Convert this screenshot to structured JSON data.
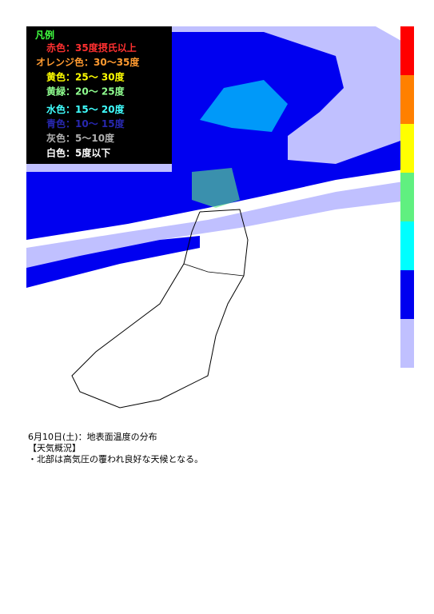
{
  "legend": {
    "title": "凡例",
    "items": [
      {
        "label": "赤色：35度摂氏以上",
        "color": "#ff3030"
      },
      {
        "label": "オレンジ色：30～35度",
        "color": "#ff9a30"
      },
      {
        "label": "黄色：25～ 30度",
        "color": "#ffff00"
      },
      {
        "label": "黄緑：20～ 25度",
        "color": "#90ff90"
      },
      {
        "label": "水色：15～ 20度",
        "color": "#40ffff"
      },
      {
        "label": "青色：10～ 15度",
        "color": "#2828b0"
      },
      {
        "label": "灰色：5～10度",
        "color": "#b0b0b0"
      },
      {
        "label": "白色：5度以下",
        "color": "#ffffff"
      }
    ]
  },
  "color_bar": [
    "#ff0000",
    "#ff8000",
    "#ffff00",
    "#60f080",
    "#00ffff",
    "#0000f0",
    "#c0c0ff"
  ],
  "caption": {
    "title": "6月10日(土)：地表面温度の分布",
    "heading": "【天気概況】",
    "text": "・北部は高気圧の覆われ良好な天候となる。"
  }
}
